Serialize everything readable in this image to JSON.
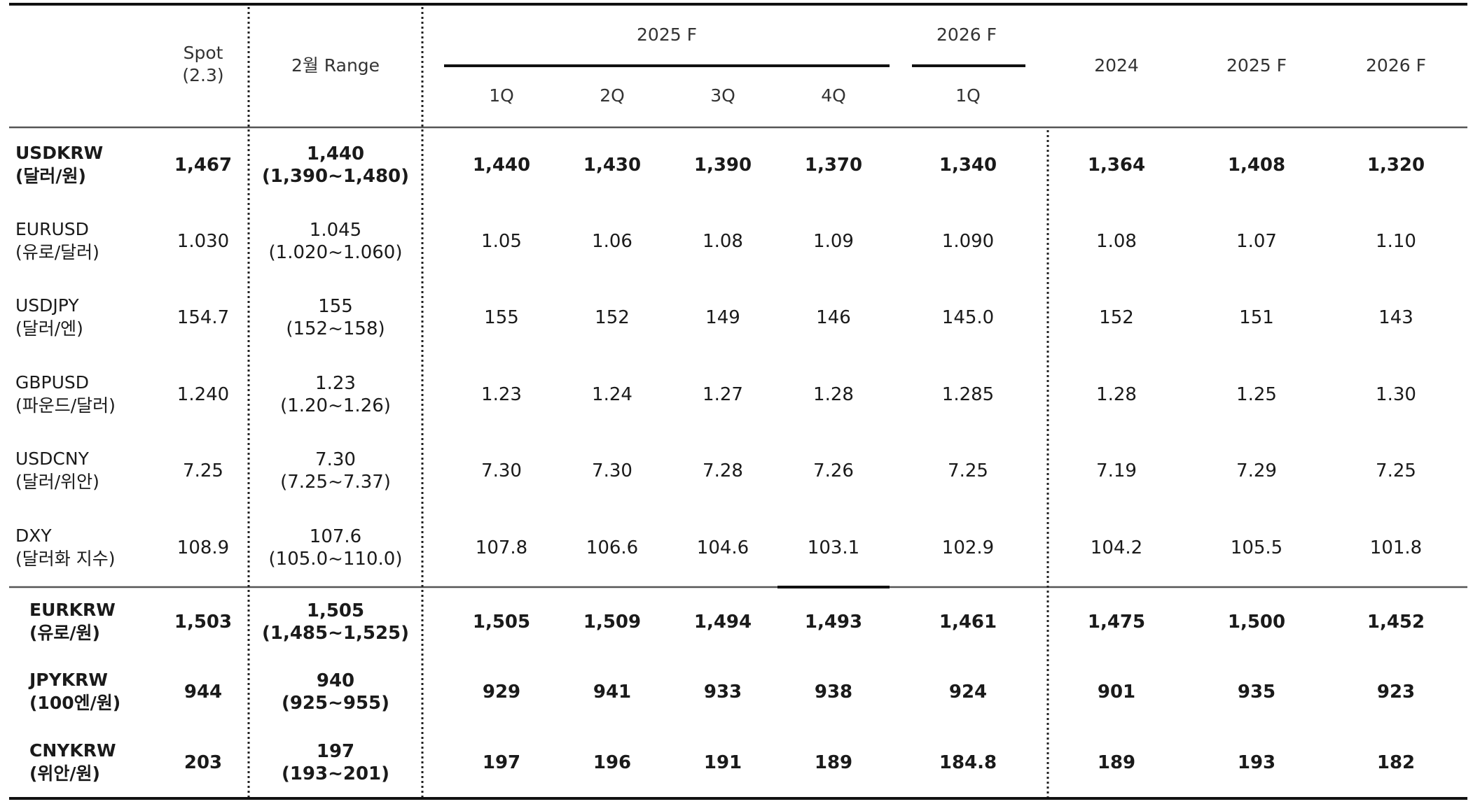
{
  "header": {
    "spot_line1": "Spot",
    "spot_line2": "(2.3)",
    "range": "2월 Range",
    "group_2025f": "2025 F",
    "group_2026f": "2026 F",
    "quarters": [
      "1Q",
      "2Q",
      "3Q",
      "4Q",
      "1Q"
    ],
    "annual": [
      "2024",
      "2025 F",
      "2026 F"
    ]
  },
  "rows": [
    {
      "code": "USDKRW",
      "name": "(달러/원)",
      "bold": true,
      "spot": "1,467",
      "range_mid": "1,440",
      "range_band": "(1,390~1,480)",
      "quarters": [
        "1,440",
        "1,430",
        "1,390",
        "1,370",
        "1,340"
      ],
      "annual": [
        "1,364",
        "1,408",
        "1,320"
      ]
    },
    {
      "code": "EURUSD",
      "name": "(유로/달러)",
      "bold": false,
      "spot": "1.030",
      "range_mid": "1.045",
      "range_band": "(1.020~1.060)",
      "quarters": [
        "1.05",
        "1.06",
        "1.08",
        "1.09",
        "1.090"
      ],
      "annual": [
        "1.08",
        "1.07",
        "1.10"
      ]
    },
    {
      "code": "USDJPY",
      "name": "(달러/엔)",
      "bold": false,
      "spot": "154.7",
      "range_mid": "155",
      "range_band": "(152~158)",
      "quarters": [
        "155",
        "152",
        "149",
        "146",
        "145.0"
      ],
      "annual": [
        "152",
        "151",
        "143"
      ]
    },
    {
      "code": "GBPUSD",
      "name": "(파운드/달러)",
      "bold": false,
      "spot": "1.240",
      "range_mid": "1.23",
      "range_band": "(1.20~1.26)",
      "quarters": [
        "1.23",
        "1.24",
        "1.27",
        "1.28",
        "1.285"
      ],
      "annual": [
        "1.28",
        "1.25",
        "1.30"
      ]
    },
    {
      "code": "USDCNY",
      "name": "(달러/위안)",
      "bold": false,
      "spot": "7.25",
      "range_mid": "7.30",
      "range_band": "(7.25~7.37)",
      "quarters": [
        "7.30",
        "7.30",
        "7.28",
        "7.26",
        "7.25"
      ],
      "annual": [
        "7.19",
        "7.29",
        "7.25"
      ]
    },
    {
      "code": "DXY",
      "name": "(달러화 지수)",
      "bold": false,
      "spot": "108.9",
      "range_mid": "107.6",
      "range_band": "(105.0~110.0)",
      "quarters": [
        "107.8",
        "106.6",
        "104.6",
        "103.1",
        "102.9"
      ],
      "annual": [
        "104.2",
        "105.5",
        "101.8"
      ]
    },
    {
      "code": "EURKRW",
      "name": "(유로/원)",
      "bold": true,
      "spot": "1,503",
      "range_mid": "1,505",
      "range_band": "(1,485~1,525)",
      "quarters": [
        "1,505",
        "1,509",
        "1,494",
        "1,493",
        "1,461"
      ],
      "annual": [
        "1,475",
        "1,500",
        "1,452"
      ]
    },
    {
      "code": "JPYKRW",
      "name": "(100엔/원)",
      "bold": true,
      "spot": "944",
      "range_mid": "940",
      "range_band": "(925~955)",
      "quarters": [
        "929",
        "941",
        "933",
        "938",
        "924"
      ],
      "annual": [
        "901",
        "935",
        "923"
      ]
    },
    {
      "code": "CNYKRW",
      "name": "(위안/원)",
      "bold": true,
      "spot": "203",
      "range_mid": "197",
      "range_band": "(193~201)",
      "quarters": [
        "197",
        "196",
        "191",
        "189",
        "184.8"
      ],
      "annual": [
        "189",
        "193",
        "182"
      ]
    }
  ]
}
